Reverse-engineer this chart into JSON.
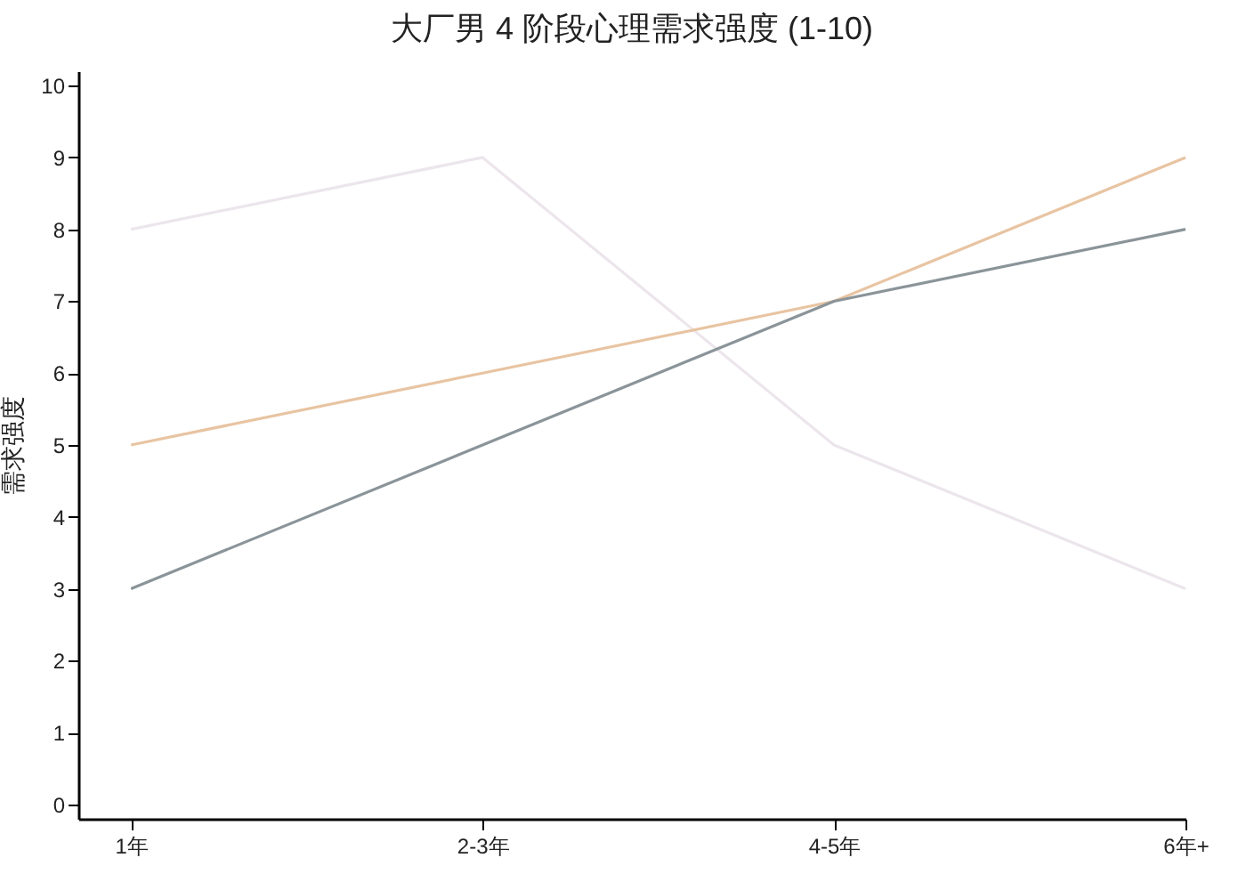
{
  "chart_data": {
    "type": "line",
    "title": "大厂男 4 阶段心理需求强度 (1-10)",
    "ylabel": "需求强度",
    "categories": [
      "1年",
      "2-3年",
      "4-5年",
      "6年+"
    ],
    "series": [
      {
        "color": "#ece6ec",
        "values": [
          8,
          9,
          5,
          3
        ]
      },
      {
        "color": "#e8c4a2",
        "values": [
          5,
          6,
          7,
          9
        ]
      },
      {
        "color": "#8a9499",
        "values": [
          3,
          5,
          7,
          8
        ]
      }
    ],
    "ylim": [
      -0.2,
      10.2
    ],
    "yticks": [
      0,
      1,
      2,
      3,
      4,
      5,
      6,
      7,
      8,
      9,
      10
    ],
    "grid": false,
    "legend": false
  }
}
